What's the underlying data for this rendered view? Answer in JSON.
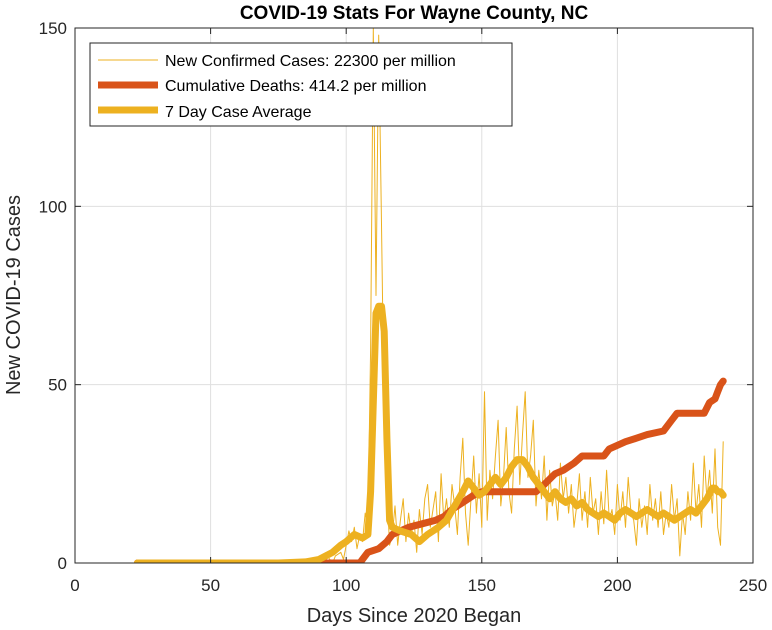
{
  "chart_data": {
    "type": "line",
    "title": "COVID-19 Stats For Wayne County, NC",
    "xlabel": "Days Since 2020 Began",
    "ylabel": "New COVID-19 Cases",
    "xlim": [
      0,
      250
    ],
    "ylim": [
      0,
      150
    ],
    "xticks": [
      0,
      50,
      100,
      150,
      200,
      250
    ],
    "yticks": [
      0,
      50,
      100,
      150
    ],
    "grid": true,
    "legend_position": "top-left",
    "colors": {
      "new_cases": "#EDB120",
      "deaths": "#D95319",
      "avg": "#EDB120"
    },
    "series": [
      {
        "name": "New Confirmed Cases: 22300 per million",
        "style": "thin",
        "points": [
          [
            23,
            0
          ],
          [
            40,
            0
          ],
          [
            60,
            0
          ],
          [
            75,
            0
          ],
          [
            80,
            0
          ],
          [
            85,
            0
          ],
          [
            88,
            0
          ],
          [
            90,
            1
          ],
          [
            92,
            0
          ],
          [
            93,
            2
          ],
          [
            95,
            0
          ],
          [
            96,
            2
          ],
          [
            98,
            3
          ],
          [
            99,
            1
          ],
          [
            100,
            5
          ],
          [
            101,
            9
          ],
          [
            102,
            6
          ],
          [
            103,
            10
          ],
          [
            104,
            4
          ],
          [
            105,
            8
          ],
          [
            106,
            6
          ],
          [
            107,
            14
          ],
          [
            108,
            10
          ],
          [
            109,
            60
          ],
          [
            110,
            150
          ],
          [
            111,
            75
          ],
          [
            112,
            148
          ],
          [
            113,
            95
          ],
          [
            114,
            40
          ],
          [
            115,
            20
          ],
          [
            116,
            5
          ],
          [
            117,
            8
          ],
          [
            118,
            16
          ],
          [
            119,
            5
          ],
          [
            120,
            12
          ],
          [
            121,
            18
          ],
          [
            122,
            6
          ],
          [
            123,
            14
          ],
          [
            124,
            8
          ],
          [
            125,
            12
          ],
          [
            126,
            3
          ],
          [
            127,
            15
          ],
          [
            128,
            8
          ],
          [
            129,
            18
          ],
          [
            130,
            22
          ],
          [
            131,
            10
          ],
          [
            132,
            15
          ],
          [
            133,
            20
          ],
          [
            134,
            6
          ],
          [
            135,
            25
          ],
          [
            136,
            12
          ],
          [
            137,
            18
          ],
          [
            138,
            10
          ],
          [
            139,
            22
          ],
          [
            140,
            16
          ],
          [
            141,
            8
          ],
          [
            142,
            24
          ],
          [
            143,
            35
          ],
          [
            144,
            14
          ],
          [
            145,
            5
          ],
          [
            146,
            18
          ],
          [
            147,
            30
          ],
          [
            148,
            14
          ],
          [
            149,
            25
          ],
          [
            150,
            10
          ],
          [
            151,
            48
          ],
          [
            152,
            12
          ],
          [
            153,
            26
          ],
          [
            154,
            18
          ],
          [
            155,
            30
          ],
          [
            156,
            40
          ],
          [
            157,
            16
          ],
          [
            158,
            24
          ],
          [
            159,
            38
          ],
          [
            160,
            20
          ],
          [
            161,
            14
          ],
          [
            162,
            32
          ],
          [
            163,
            44
          ],
          [
            164,
            22
          ],
          [
            165,
            36
          ],
          [
            166,
            48
          ],
          [
            167,
            24
          ],
          [
            168,
            30
          ],
          [
            169,
            40
          ],
          [
            170,
            16
          ],
          [
            171,
            26
          ],
          [
            172,
            18
          ],
          [
            173,
            30
          ],
          [
            174,
            12
          ],
          [
            175,
            26
          ],
          [
            176,
            16
          ],
          [
            177,
            20
          ],
          [
            178,
            12
          ],
          [
            179,
            28
          ],
          [
            180,
            18
          ],
          [
            181,
            24
          ],
          [
            182,
            14
          ],
          [
            183,
            22
          ],
          [
            184,
            10
          ],
          [
            185,
            16
          ],
          [
            186,
            25
          ],
          [
            187,
            12
          ],
          [
            188,
            20
          ],
          [
            189,
            10
          ],
          [
            190,
            24
          ],
          [
            191,
            14
          ],
          [
            192,
            18
          ],
          [
            193,
            8
          ],
          [
            194,
            20
          ],
          [
            195,
            11
          ],
          [
            196,
            26
          ],
          [
            197,
            12
          ],
          [
            198,
            15
          ],
          [
            199,
            8
          ],
          [
            200,
            22
          ],
          [
            201,
            12
          ],
          [
            202,
            20
          ],
          [
            203,
            10
          ],
          [
            204,
            24
          ],
          [
            205,
            14
          ],
          [
            206,
            12
          ],
          [
            207,
            5
          ],
          [
            208,
            18
          ],
          [
            209,
            10
          ],
          [
            210,
            16
          ],
          [
            211,
            8
          ],
          [
            212,
            22
          ],
          [
            213,
            12
          ],
          [
            214,
            18
          ],
          [
            215,
            10
          ],
          [
            216,
            20
          ],
          [
            217,
            8
          ],
          [
            218,
            14
          ],
          [
            219,
            10
          ],
          [
            220,
            22
          ],
          [
            221,
            12
          ],
          [
            222,
            18
          ],
          [
            223,
            2
          ],
          [
            224,
            14
          ],
          [
            225,
            8
          ],
          [
            226,
            20
          ],
          [
            227,
            12
          ],
          [
            228,
            28
          ],
          [
            229,
            14
          ],
          [
            230,
            22
          ],
          [
            231,
            10
          ],
          [
            232,
            30
          ],
          [
            233,
            18
          ],
          [
            234,
            26
          ],
          [
            235,
            14
          ],
          [
            236,
            32
          ],
          [
            237,
            10
          ],
          [
            238,
            5
          ],
          [
            239,
            34
          ]
        ]
      },
      {
        "name": "Cumulative Deaths: 414.2 per million",
        "style": "thick",
        "points": [
          [
            23,
            0
          ],
          [
            100,
            0
          ],
          [
            105,
            0
          ],
          [
            106,
            1
          ],
          [
            108,
            3
          ],
          [
            112,
            4
          ],
          [
            115,
            6
          ],
          [
            117,
            8
          ],
          [
            120,
            9
          ],
          [
            123,
            10
          ],
          [
            128,
            11
          ],
          [
            133,
            12
          ],
          [
            136,
            13
          ],
          [
            139,
            15
          ],
          [
            143,
            17
          ],
          [
            147,
            19
          ],
          [
            150,
            20
          ],
          [
            170,
            20
          ],
          [
            173,
            22
          ],
          [
            177,
            25
          ],
          [
            180,
            26
          ],
          [
            184,
            28
          ],
          [
            187,
            30
          ],
          [
            195,
            30
          ],
          [
            197,
            32
          ],
          [
            200,
            33
          ],
          [
            203,
            34
          ],
          [
            207,
            35
          ],
          [
            211,
            36
          ],
          [
            217,
            37
          ],
          [
            220,
            40
          ],
          [
            222,
            42
          ],
          [
            232,
            42
          ],
          [
            234,
            45
          ],
          [
            236,
            46
          ],
          [
            237,
            48
          ],
          [
            238,
            50
          ],
          [
            239,
            51
          ]
        ]
      },
      {
        "name": "7 Day Case Average",
        "style": "thick",
        "points": [
          [
            23,
            0
          ],
          [
            75,
            0
          ],
          [
            85,
            0.3
          ],
          [
            90,
            1
          ],
          [
            95,
            3
          ],
          [
            98,
            5
          ],
          [
            100,
            6
          ],
          [
            103,
            8
          ],
          [
            106,
            7
          ],
          [
            108,
            8
          ],
          [
            109,
            20
          ],
          [
            110,
            45
          ],
          [
            111,
            70
          ],
          [
            112,
            72
          ],
          [
            113,
            72
          ],
          [
            114,
            65
          ],
          [
            115,
            35
          ],
          [
            116,
            12
          ],
          [
            117,
            10
          ],
          [
            120,
            9
          ],
          [
            124,
            8
          ],
          [
            127,
            6
          ],
          [
            130,
            8
          ],
          [
            134,
            10
          ],
          [
            137,
            12
          ],
          [
            140,
            16
          ],
          [
            143,
            20
          ],
          [
            145,
            23
          ],
          [
            147,
            21
          ],
          [
            149,
            19
          ],
          [
            151,
            20
          ],
          [
            153,
            22
          ],
          [
            155,
            24
          ],
          [
            157,
            22
          ],
          [
            159,
            24
          ],
          [
            161,
            27
          ],
          [
            163,
            29
          ],
          [
            165,
            29
          ],
          [
            167,
            27
          ],
          [
            169,
            24
          ],
          [
            171,
            22
          ],
          [
            173,
            20
          ],
          [
            175,
            18
          ],
          [
            177,
            20
          ],
          [
            179,
            18
          ],
          [
            181,
            17
          ],
          [
            183,
            18
          ],
          [
            185,
            16
          ],
          [
            187,
            17
          ],
          [
            189,
            15
          ],
          [
            191,
            14
          ],
          [
            193,
            13
          ],
          [
            195,
            14
          ],
          [
            197,
            13
          ],
          [
            199,
            12
          ],
          [
            201,
            14
          ],
          [
            203,
            15
          ],
          [
            205,
            14
          ],
          [
            207,
            13
          ],
          [
            209,
            14
          ],
          [
            211,
            15
          ],
          [
            213,
            14
          ],
          [
            215,
            13
          ],
          [
            217,
            14
          ],
          [
            219,
            13
          ],
          [
            221,
            12
          ],
          [
            223,
            13
          ],
          [
            225,
            14
          ],
          [
            227,
            15
          ],
          [
            229,
            14
          ],
          [
            231,
            16
          ],
          [
            233,
            18
          ],
          [
            235,
            21
          ],
          [
            236,
            21
          ],
          [
            237,
            20
          ],
          [
            238,
            20
          ],
          [
            239,
            19
          ]
        ]
      }
    ]
  }
}
